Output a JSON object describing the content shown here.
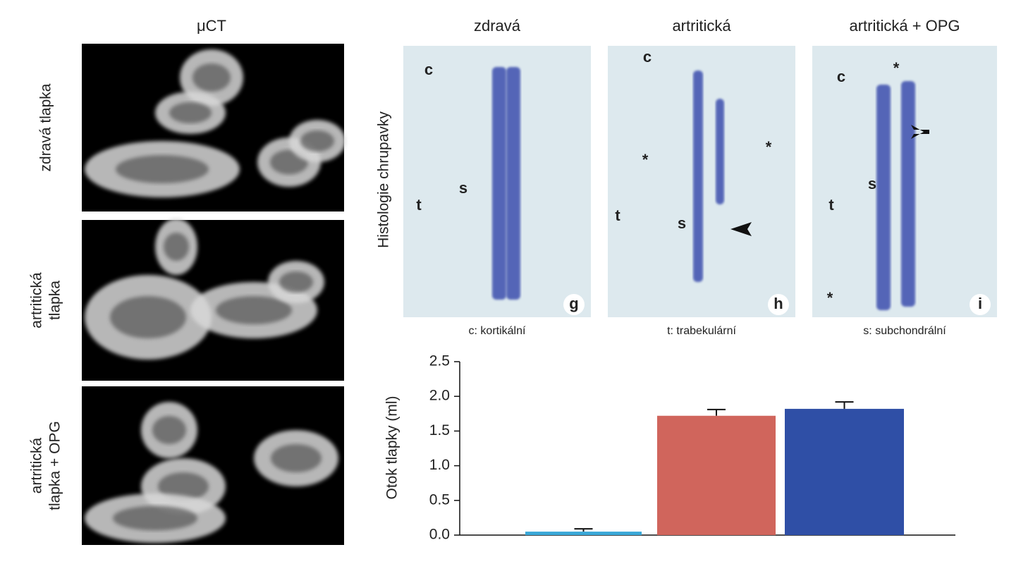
{
  "ct_panel": {
    "title": "μCT",
    "rows": [
      [
        "zdravá tlapka"
      ],
      [
        "artritická",
        "tlapka"
      ],
      [
        "artritická",
        "tlapka + OPG"
      ]
    ]
  },
  "histology": {
    "y_label": "Histologie chrupavky",
    "panels": [
      {
        "header": "zdravá",
        "letter": "g",
        "markers": [
          "c",
          "s",
          "t"
        ]
      },
      {
        "header": "artritická",
        "letter": "h",
        "markers": [
          "c",
          "*",
          "*",
          "t",
          "s"
        ]
      },
      {
        "header": "artritická + OPG",
        "letter": "i",
        "markers": [
          "c",
          "*",
          "s",
          "t",
          "*"
        ]
      }
    ],
    "captions": [
      "c: kortikální",
      "t: trabekulární",
      "s: subchondrální"
    ]
  },
  "chart_data": {
    "type": "bar",
    "y_label": "Otok tlapky (ml)",
    "categories": [
      null,
      null,
      null
    ],
    "values": [
      0.05,
      1.72,
      1.82
    ],
    "errors": [
      0.04,
      0.09,
      0.1
    ],
    "colors": [
      "#3aa8d8",
      "#d0655c",
      "#2f4fa6"
    ],
    "ylim": [
      0,
      2.5
    ],
    "yticks": [
      {
        "value": 0,
        "label": "0.0"
      },
      0.5,
      {
        "value": 1,
        "label": "1.0"
      },
      1.5,
      {
        "value": 2,
        "label": "2.0"
      },
      2.5
    ]
  }
}
